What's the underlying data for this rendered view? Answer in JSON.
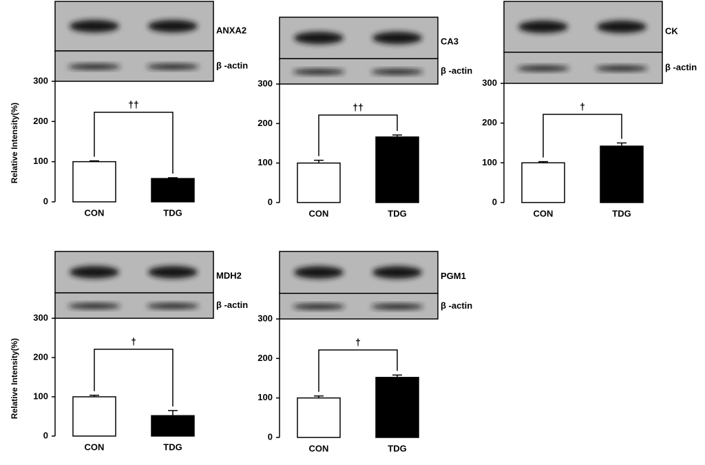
{
  "chart_data": [
    {
      "type": "bar",
      "protein": "ANXA2",
      "control": "β -actin",
      "categories": [
        "CON",
        "TDG"
      ],
      "values": [
        100,
        58
      ],
      "errors": [
        2,
        2
      ],
      "colors": [
        "#ffffff",
        "#000000"
      ],
      "ylim": [
        0,
        300
      ],
      "yticks": [
        0,
        100,
        200,
        300
      ],
      "ylabel": "Relative Intensity(%)",
      "annotation": "††"
    },
    {
      "type": "bar",
      "protein": "CA3",
      "control": "β -actin",
      "categories": [
        "CON",
        "TDG"
      ],
      "values": [
        100,
        166
      ],
      "errors": [
        7,
        5
      ],
      "colors": [
        "#ffffff",
        "#000000"
      ],
      "ylim": [
        0,
        300
      ],
      "yticks": [
        0,
        100,
        200,
        300
      ],
      "annotation": "††"
    },
    {
      "type": "bar",
      "protein": "CK",
      "control": "β -actin",
      "categories": [
        "CON",
        "TDG"
      ],
      "values": [
        100,
        142
      ],
      "errors": [
        3,
        8
      ],
      "colors": [
        "#ffffff",
        "#000000"
      ],
      "ylim": [
        0,
        300
      ],
      "yticks": [
        0,
        100,
        200,
        300
      ],
      "annotation": "†"
    },
    {
      "type": "bar",
      "protein": "MDH2",
      "control": "β -actin",
      "categories": [
        "CON",
        "TDG"
      ],
      "values": [
        100,
        52
      ],
      "errors": [
        4,
        13
      ],
      "colors": [
        "#ffffff",
        "#000000"
      ],
      "ylim": [
        0,
        300
      ],
      "yticks": [
        0,
        100,
        200,
        300
      ],
      "ylabel": "Relative Intensity(%)",
      "annotation": "†"
    },
    {
      "type": "bar",
      "protein": "PGM1",
      "control": "β -actin",
      "categories": [
        "CON",
        "TDG"
      ],
      "values": [
        100,
        152
      ],
      "errors": [
        5,
        6
      ],
      "colors": [
        "#ffffff",
        "#000000"
      ],
      "ylim": [
        0,
        300
      ],
      "yticks": [
        0,
        100,
        200,
        300
      ],
      "annotation": "†"
    }
  ]
}
